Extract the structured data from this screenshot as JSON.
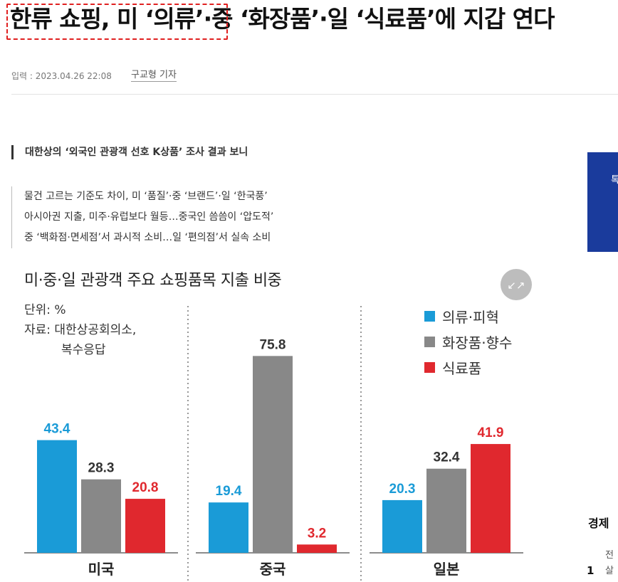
{
  "article": {
    "headline": "한류 쇼핑, 미 ‘의류’·중 ‘화장품’·일 ‘식료품’에 지갑 연다",
    "byline_prefix": "입력 : 2023.04.26 22:08",
    "reporter": "구교형 기자",
    "subtitle": "대한상의 ‘외국인 관광객 선호 K상품’ 조사 결과 보니",
    "summary": [
      "물건 고르는 기준도 차이, 미 ‘품질’·중 ‘브랜드’·일 ‘한국풍’",
      "아시아권 지출, 미주·유럽보다 월등…중국인 씀씀이 ‘압도적’",
      "중 ‘백화점·면세점’서 과시적 소비…일 ‘편의점’서 실속 소비"
    ]
  },
  "sidebar": {
    "banner_char": "톡",
    "section_title": "경제",
    "rank": "1",
    "item_line1": "전",
    "item_line2": "살"
  },
  "figure": {
    "expand_icon": "↙↗",
    "unit_line": "단위: %",
    "source_line1": "자료: 대한상공회의소,",
    "source_line2": "복수응답"
  },
  "colors": {
    "clothing": "#1a9bd7",
    "cosmetics": "#888888",
    "food": "#e0282e",
    "banner": "#1a3b9c"
  },
  "chart_data": {
    "type": "bar",
    "title": "미·중·일 관광객 주요 쇼핑품목 지출 비중",
    "categories": [
      "미국",
      "중국",
      "일본"
    ],
    "series": [
      {
        "name": "의류·피혁",
        "values": [
          43.4,
          19.4,
          20.3
        ]
      },
      {
        "name": "화장품·향수",
        "values": [
          28.3,
          75.8,
          32.4
        ]
      },
      {
        "name": "식료품",
        "values": [
          20.8,
          3.2,
          41.9
        ]
      }
    ],
    "value_labels": [
      [
        "43.4",
        "19.4",
        "20.3"
      ],
      [
        "28.3",
        "75.8",
        "32.4"
      ],
      [
        "20.8",
        "3.2",
        "41.9"
      ]
    ],
    "ylabel": "단위: %",
    "ylim": [
      0,
      80
    ],
    "legend_position": "top-right",
    "grid": false
  }
}
